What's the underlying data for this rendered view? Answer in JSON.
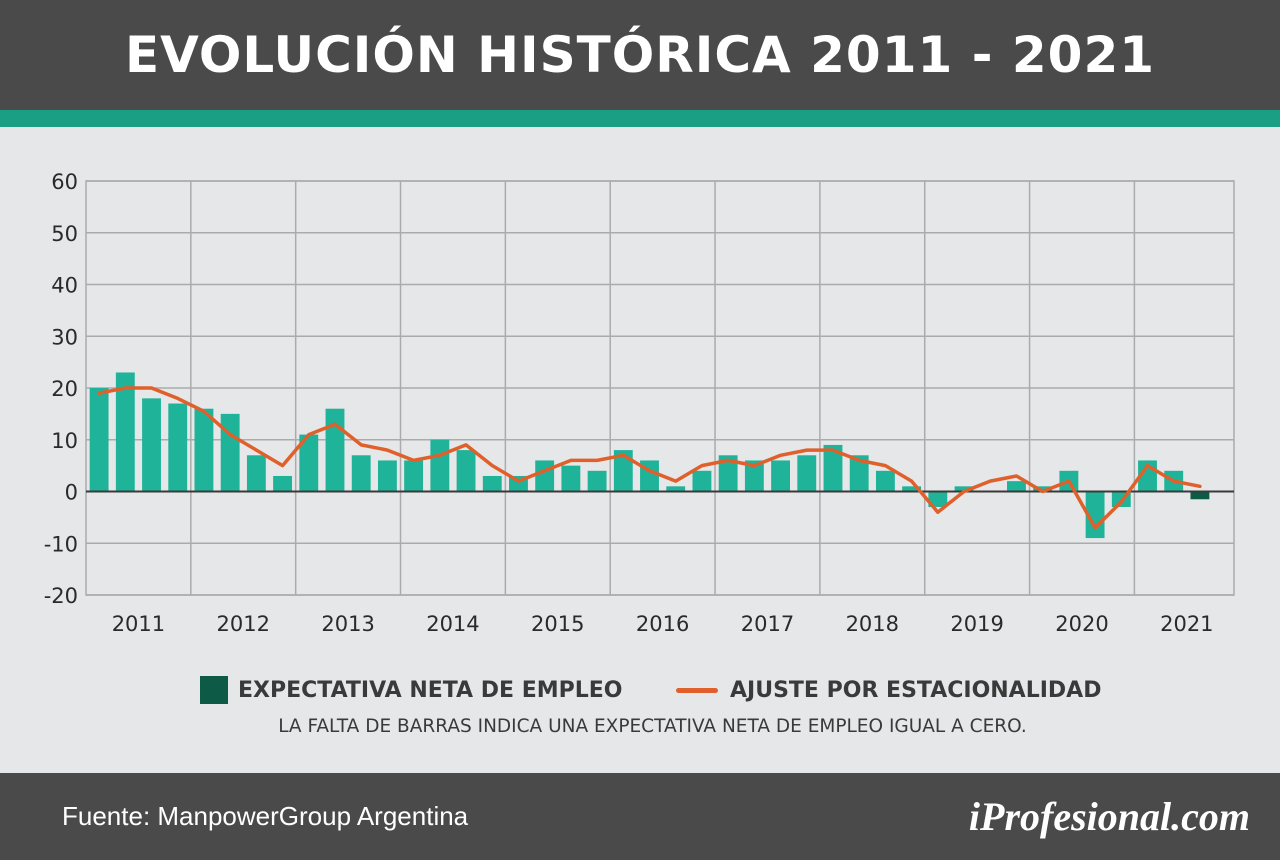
{
  "header": {
    "title": "EVOLUCIÓN HISTÓRICA 2011 - 2021"
  },
  "colors": {
    "bar": "#1fb39a",
    "negative_bar": "#0d5a47",
    "line": "#e0602c",
    "grid": "#a9abad",
    "header": "#4a4a4a",
    "accent": "#1a9e84"
  },
  "chart_data": {
    "type": "bar",
    "title": "EVOLUCIÓN HISTÓRICA 2011 - 2021",
    "xlabel": "",
    "ylabel": "",
    "ylim": [
      -20,
      60
    ],
    "yticks": [
      60,
      50,
      40,
      30,
      20,
      10,
      0,
      -10,
      -20
    ],
    "years": [
      "2011",
      "2012",
      "2013",
      "2014",
      "2015",
      "2016",
      "2017",
      "2018",
      "2019",
      "2020",
      "2021"
    ],
    "quarters_per_year": 4,
    "grid": true,
    "legend_position": "bottom",
    "series": [
      {
        "name": "EXPECTATIVA NETA DE EMPLEO",
        "type": "bar",
        "values": [
          20,
          23,
          18,
          17,
          16,
          15,
          7,
          3,
          11,
          16,
          7,
          6,
          6,
          10,
          8,
          3,
          3,
          6,
          5,
          4,
          8,
          6,
          1,
          4,
          7,
          6,
          6,
          7,
          9,
          7,
          4,
          1,
          -3,
          1,
          0,
          2,
          1,
          4,
          -9,
          -3,
          6,
          4,
          -1.5
        ]
      },
      {
        "name": "AJUSTE POR ESTACIONALIDAD",
        "type": "line",
        "values": [
          19,
          20,
          20,
          18,
          15.5,
          11,
          8,
          5,
          11,
          13,
          9,
          8,
          6,
          7,
          9,
          5,
          2,
          4,
          6,
          6,
          7,
          4,
          2,
          5,
          6,
          5,
          7,
          8,
          8,
          6,
          5,
          2,
          -4,
          0,
          2,
          3,
          0,
          2,
          -7,
          -2,
          5,
          2,
          1
        ]
      }
    ]
  },
  "legend": {
    "bar_label": "EXPECTATIVA NETA DE EMPLEO",
    "line_label": "AJUSTE POR ESTACIONALIDAD"
  },
  "note": "LA FALTA DE BARRAS INDICA UNA EXPECTATIVA NETA DE EMPLEO IGUAL A CERO.",
  "footer": {
    "source": "Fuente: ManpowerGroup Argentina",
    "brand": "iProfesional.com"
  }
}
